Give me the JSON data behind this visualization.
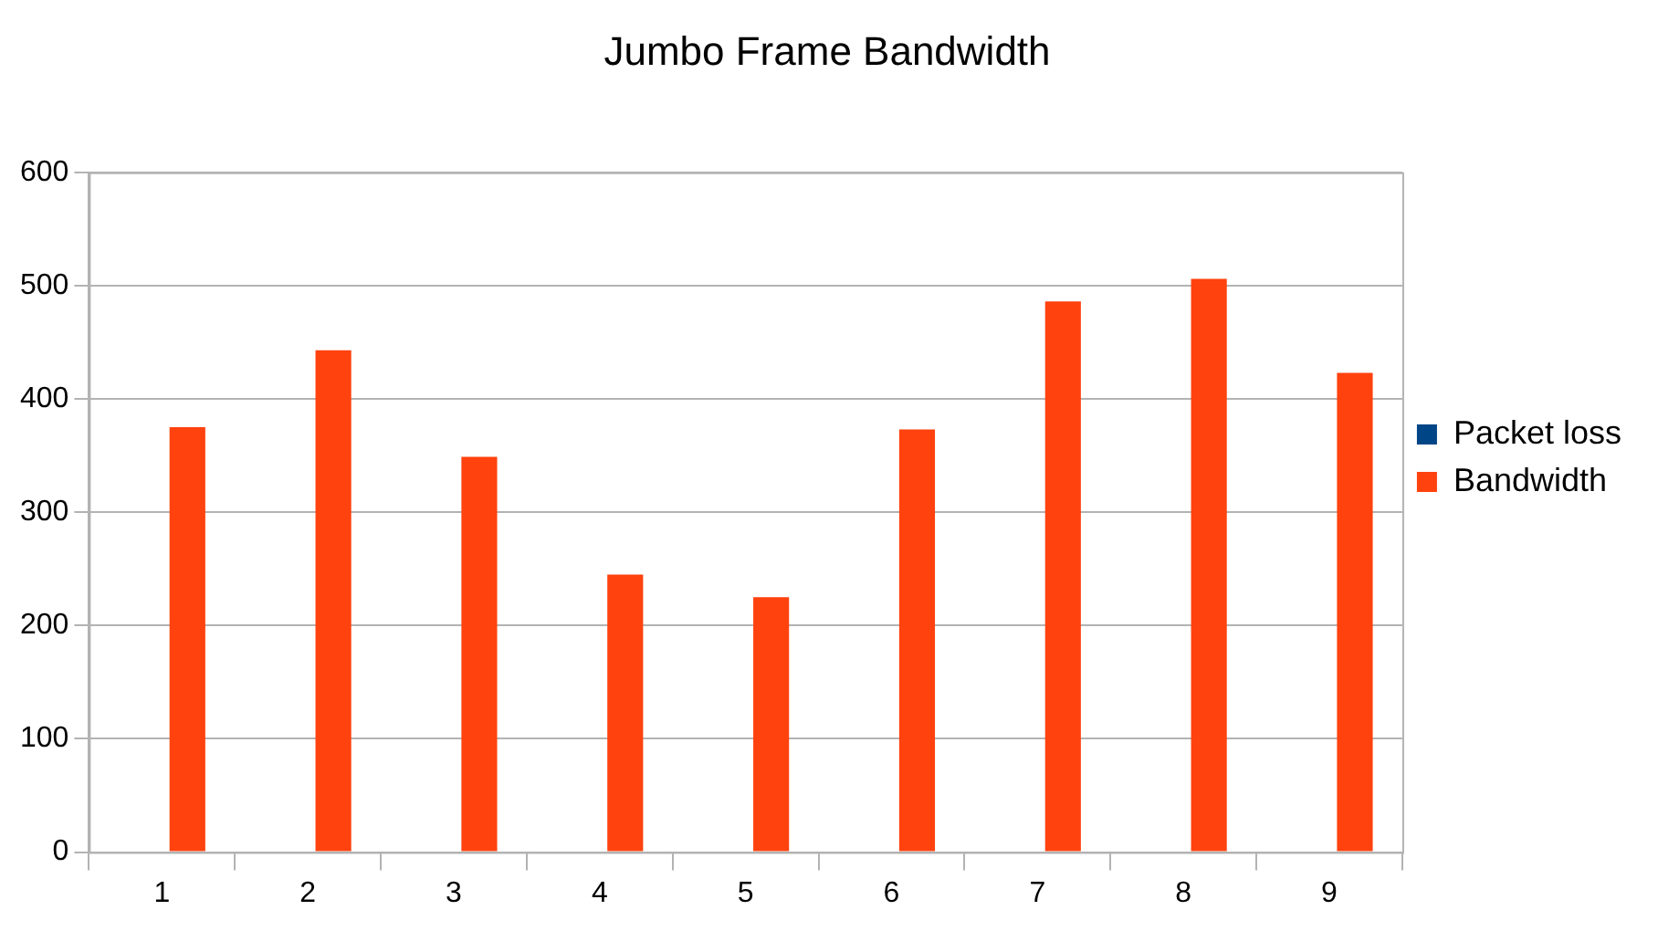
{
  "chart_data": {
    "type": "bar",
    "title": "Jumbo Frame Bandwidth",
    "categories": [
      "1",
      "2",
      "3",
      "4",
      "5",
      "6",
      "7",
      "8",
      "9"
    ],
    "series": [
      {
        "name": "Packet loss",
        "color": "#004586",
        "values": [
          0,
          0,
          0,
          0,
          0,
          0,
          0,
          0,
          0
        ]
      },
      {
        "name": "Bandwidth",
        "color": "#ff420e",
        "values": [
          375,
          443,
          349,
          245,
          225,
          373,
          486,
          506,
          423
        ]
      }
    ],
    "ylim": [
      0,
      600
    ],
    "yticks": [
      0,
      100,
      200,
      300,
      400,
      500,
      600
    ],
    "grid": "y",
    "legend": "right"
  }
}
